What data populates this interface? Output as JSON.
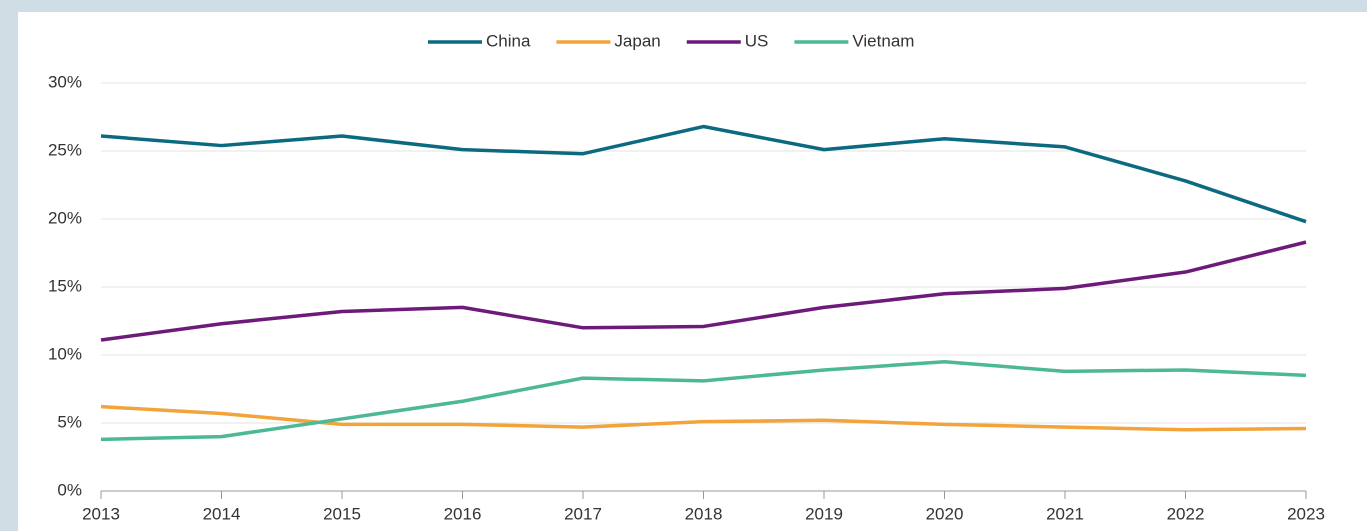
{
  "chart_data": {
    "type": "line",
    "x": [
      2013,
      2014,
      2015,
      2016,
      2017,
      2018,
      2019,
      2020,
      2021,
      2022,
      2023
    ],
    "xlim": [
      2013,
      2023
    ],
    "xticks": [
      2013,
      2014,
      2015,
      2016,
      2017,
      2018,
      2019,
      2020,
      2021,
      2022,
      2023
    ],
    "ylim": [
      0,
      30
    ],
    "yticks": [
      {
        "value": 0,
        "label": "0%"
      },
      {
        "value": 5,
        "label": "5%"
      },
      {
        "value": 10,
        "label": "10%"
      },
      {
        "value": 15,
        "label": "15%"
      },
      {
        "value": 20,
        "label": "20%"
      },
      {
        "value": 25,
        "label": "25%"
      },
      {
        "value": 30,
        "label": "30%"
      }
    ],
    "grid": true,
    "legend": "top",
    "series": [
      {
        "name": "China",
        "color": "#0b6a80",
        "values": [
          26.1,
          25.4,
          26.1,
          25.1,
          24.8,
          26.8,
          25.1,
          25.9,
          25.3,
          22.8,
          19.8
        ]
      },
      {
        "name": "Japan",
        "color": "#f2a33a",
        "values": [
          6.2,
          5.7,
          4.9,
          4.9,
          4.7,
          5.1,
          5.2,
          4.9,
          4.7,
          4.5,
          4.6
        ]
      },
      {
        "name": "US",
        "color": "#6d1a7a",
        "values": [
          11.1,
          12.3,
          13.2,
          13.5,
          12.0,
          12.1,
          13.5,
          14.5,
          14.9,
          16.1,
          18.3
        ]
      },
      {
        "name": "Vietnam",
        "color": "#4db897",
        "values": [
          3.8,
          4.0,
          5.3,
          6.6,
          8.3,
          8.1,
          8.9,
          9.5,
          8.8,
          8.9,
          8.5
        ]
      }
    ]
  }
}
